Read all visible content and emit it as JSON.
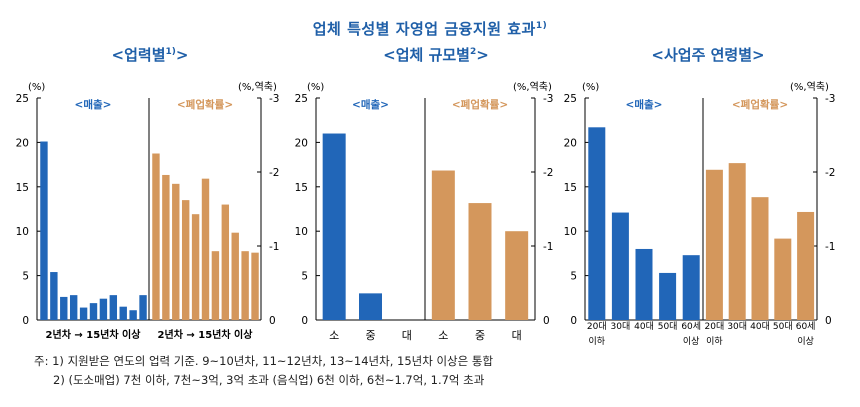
{
  "title": "업체 특성별 자영업 금융지원 효과",
  "title_sup": "1)",
  "colors": {
    "sales": "#2166b8",
    "closure": "#d4975c",
    "title": "#1f5fa8"
  },
  "notes": [
    "주: 1) 지원받은 연도의 업력 기준. 9~10년차, 11~12년차, 13~14년차, 15년차 이상은 통합",
    "2) (도소매업) 7천 이하, 7천~3억, 3억 초과 (음식업) 6천 이하, 6천~1.7억, 1.7억 초과"
  ],
  "chart_data": [
    {
      "type": "bar",
      "title": "<업력별",
      "title_sup": "1)",
      "title_end": ">",
      "left_unit": "(%)",
      "right_unit": "(%,역축)",
      "left_ylim": [
        0,
        25
      ],
      "left_ticks": [
        "0",
        "5",
        "10",
        "15",
        "20",
        "25"
      ],
      "right_ylim": [
        0,
        -3
      ],
      "right_ticks": [
        "0",
        "-1",
        "-2",
        "-3"
      ],
      "panel_labels": {
        "sales": "<매출>",
        "closure": "<폐업확률>"
      },
      "x_range_labels": [
        "2년차 → 15년차 이상",
        "2년차 → 15년차 이상"
      ],
      "series": [
        {
          "name": "매출",
          "axis": "left",
          "values": [
            20.1,
            5.4,
            2.6,
            2.8,
            1.4,
            1.9,
            2.4,
            2.8,
            1.5,
            1.1,
            2.8
          ]
        },
        {
          "name": "폐업확률",
          "axis": "right",
          "values": [
            -2.25,
            -1.96,
            -1.84,
            -1.62,
            -1.43,
            -1.91,
            -0.93,
            -1.56,
            -1.18,
            -0.93,
            -0.91
          ]
        }
      ]
    },
    {
      "type": "bar",
      "title": "<업체 규모별",
      "title_sup": "2",
      "title_end": ">",
      "left_unit": "(%)",
      "right_unit": "(%,역축)",
      "left_ylim": [
        0,
        25
      ],
      "left_ticks": [
        "0",
        "5",
        "10",
        "15",
        "20",
        "25"
      ],
      "right_ylim": [
        0,
        -3
      ],
      "right_ticks": [
        "0",
        "-1",
        "-2",
        "-3"
      ],
      "panel_labels": {
        "sales": "<매출>",
        "closure": "<폐업확률>"
      },
      "categories": [
        "소",
        "중",
        "대"
      ],
      "series": [
        {
          "name": "매출",
          "axis": "left",
          "values": [
            21.0,
            3.0,
            0
          ]
        },
        {
          "name": "폐업확률",
          "axis": "right",
          "values": [
            -2.02,
            -1.58,
            -1.2
          ]
        }
      ]
    },
    {
      "type": "bar",
      "title": "<사업주 연령별>",
      "left_unit": "(%)",
      "right_unit": "(%,역축)",
      "left_ylim": [
        0,
        25
      ],
      "left_ticks": [
        "0",
        "5",
        "10",
        "15",
        "20",
        "25"
      ],
      "right_ylim": [
        0,
        -3
      ],
      "right_ticks": [
        "0",
        "-1",
        "-2",
        "-3"
      ],
      "panel_labels": {
        "sales": "<매출>",
        "closure": "<폐업확률>"
      },
      "categories": [
        "20대",
        "30대",
        "40대",
        "50대",
        "60세"
      ],
      "category_sublabels": [
        "이하",
        "",
        "",
        "",
        "이상"
      ],
      "series": [
        {
          "name": "매출",
          "axis": "left",
          "values": [
            21.7,
            12.1,
            8.0,
            5.3,
            7.3
          ]
        },
        {
          "name": "폐업확률",
          "axis": "right",
          "values": [
            -2.03,
            -2.12,
            -1.66,
            -1.1,
            -1.46
          ]
        }
      ]
    }
  ]
}
